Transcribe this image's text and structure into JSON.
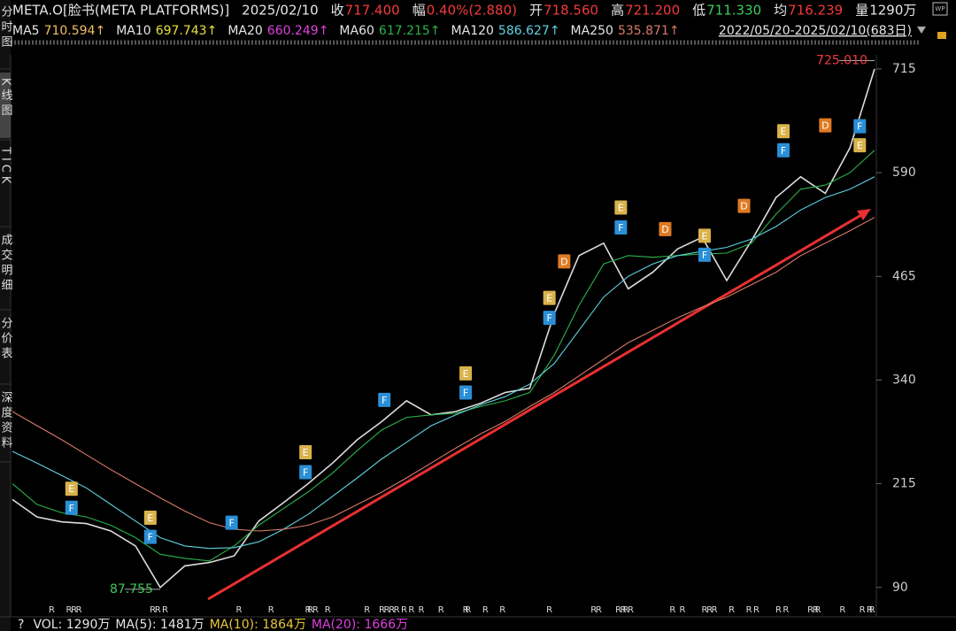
{
  "header": {
    "quote": [
      {
        "text": "META.O[脸书(META PLATFORMS)]",
        "color": "#e6e6e6"
      },
      {
        "text": "2025/02/10",
        "color": "#e6e6e6"
      },
      {
        "text": "收",
        "color": "#e6e6e6"
      },
      {
        "text": "717.400",
        "color": "#f23a3a"
      },
      {
        "text": "幅",
        "color": "#e6e6e6"
      },
      {
        "text": "0.40%(2.880)",
        "color": "#f23a3a"
      },
      {
        "text": "开",
        "color": "#e6e6e6"
      },
      {
        "text": "718.560",
        "color": "#f23a3a"
      },
      {
        "text": "高",
        "color": "#e6e6e6"
      },
      {
        "text": "721.200",
        "color": "#f23a3a"
      },
      {
        "text": "低",
        "color": "#e6e6e6"
      },
      {
        "text": "711.330",
        "color": "#3ec95b"
      },
      {
        "text": "均",
        "color": "#e6e6e6"
      },
      {
        "text": "716.239",
        "color": "#f23a3a"
      },
      {
        "text": "量",
        "color": "#e6e6e6"
      },
      {
        "text": "1290万",
        "color": "#e6e6e6"
      }
    ],
    "ma": [
      {
        "label": "MA5",
        "value": "710.594↑",
        "color": "#f0c060"
      },
      {
        "label": "MA10",
        "value": "697.743↑",
        "color": "#e8e03a"
      },
      {
        "label": "MA20",
        "value": "660.249↑",
        "color": "#e040e0"
      },
      {
        "label": "MA60",
        "value": "617.215↑",
        "color": "#2bb24c"
      },
      {
        "label": "MA120",
        "value": "586.627↑",
        "color": "#5fd3e0"
      },
      {
        "label": "MA250",
        "value": "535.871↑",
        "color": "#d87a6a"
      }
    ],
    "range": "2022/05/20-2025/02/10(683日)"
  },
  "tabs": [
    "分时图",
    "K线图",
    "TICK",
    "成交明细",
    "分价表",
    "深度资料"
  ],
  "footer": [
    {
      "text": "?",
      "color": "#e6e6e6"
    },
    {
      "text": "VOL: 1290万",
      "color": "#e6e6e6"
    },
    {
      "text": "MA(5): 1481万",
      "color": "#e6e6e6"
    },
    {
      "text": "MA(10): 1864万",
      "color": "#e8c83a"
    },
    {
      "text": "MA(20): 1666万",
      "color": "#e040e0"
    }
  ],
  "chart_data": {
    "type": "line",
    "categories": [
      null,
      null,
      null,
      null,
      null,
      null,
      null,
      null,
      null,
      null,
      null,
      null,
      null,
      null,
      null,
      null,
      null,
      null,
      null,
      null,
      null,
      null,
      null,
      null,
      null,
      null,
      null,
      null,
      null,
      null,
      null,
      null,
      null,
      null,
      null,
      null
    ],
    "series": [
      {
        "color": "#dcdcdc",
        "values": [
          196,
          175,
          169,
          167,
          158,
          140,
          90,
          116,
          120,
          128,
          170,
          192,
          215,
          240,
          268,
          290,
          315,
          298,
          302,
          312,
          325,
          330,
          420,
          490,
          505,
          450,
          470,
          498,
          512,
          460,
          508,
          560,
          585,
          565,
          620,
          715
        ]
      },
      {
        "name": "MA60",
        "color": "#2bb24c",
        "values": [
          215,
          190,
          180,
          175,
          165,
          150,
          130,
          125,
          122,
          140,
          165,
          185,
          205,
          228,
          255,
          280,
          295,
          298,
          300,
          308,
          315,
          325,
          370,
          430,
          480,
          490,
          488,
          490,
          492,
          493,
          505,
          540,
          570,
          575,
          590,
          617
        ]
      },
      {
        "name": "MA120",
        "color": "#5fd3e0",
        "values": [
          254,
          240,
          225,
          210,
          190,
          170,
          150,
          140,
          137,
          138,
          145,
          160,
          178,
          200,
          222,
          245,
          265,
          285,
          298,
          310,
          320,
          335,
          360,
          400,
          440,
          465,
          480,
          490,
          495,
          500,
          510,
          525,
          545,
          560,
          570,
          585
        ]
      },
      {
        "name": "MA250",
        "color": "#d87a6a",
        "values": [
          302,
          285,
          268,
          250,
          232,
          215,
          198,
          182,
          168,
          160,
          158,
          160,
          165,
          175,
          190,
          205,
          222,
          240,
          258,
          275,
          290,
          308,
          325,
          345,
          365,
          385,
          400,
          415,
          428,
          440,
          455,
          470,
          490,
          505,
          520,
          536
        ]
      }
    ],
    "ylim": [
      62,
      732
    ],
    "yticks": [
      90,
      215,
      340,
      465,
      590,
      715
    ],
    "high": {
      "text": "725.010",
      "value": 725.01,
      "x": 35,
      "color": "#f23a3a"
    },
    "low": {
      "text": "87.755",
      "value": 87.755,
      "x": 6,
      "color": "#3ec95b"
    },
    "event_colors": {
      "E": "#d9b24a",
      "F": "#2a8fd6",
      "D": "#e07a22"
    },
    "events": [
      {
        "label": "E",
        "x": 2.4,
        "y": 209
      },
      {
        "label": "F",
        "x": 2.4,
        "y": 186
      },
      {
        "label": "E",
        "x": 5.6,
        "y": 174
      },
      {
        "label": "F",
        "x": 5.6,
        "y": 151
      },
      {
        "label": "F",
        "x": 8.9,
        "y": 168
      },
      {
        "label": "E",
        "x": 11.9,
        "y": 253
      },
      {
        "label": "F",
        "x": 11.9,
        "y": 229
      },
      {
        "label": "F",
        "x": 15.1,
        "y": 316
      },
      {
        "label": "E",
        "x": 18.4,
        "y": 348
      },
      {
        "label": "F",
        "x": 18.4,
        "y": 325
      },
      {
        "label": "D",
        "x": 22.4,
        "y": 483
      },
      {
        "label": "E",
        "x": 21.8,
        "y": 439
      },
      {
        "label": "F",
        "x": 21.8,
        "y": 415
      },
      {
        "label": "E",
        "x": 24.7,
        "y": 548
      },
      {
        "label": "F",
        "x": 24.7,
        "y": 524
      },
      {
        "label": "D",
        "x": 26.5,
        "y": 522
      },
      {
        "label": "E",
        "x": 28.1,
        "y": 514
      },
      {
        "label": "F",
        "x": 28.1,
        "y": 491
      },
      {
        "label": "D",
        "x": 29.7,
        "y": 550
      },
      {
        "label": "E",
        "x": 31.3,
        "y": 640
      },
      {
        "label": "F",
        "x": 31.3,
        "y": 617
      },
      {
        "label": "D",
        "x": 33.0,
        "y": 647
      },
      {
        "label": "F",
        "x": 34.4,
        "y": 646
      },
      {
        "label": "E",
        "x": 34.4,
        "y": 623
      }
    ],
    "r_marks": {
      "label": "R",
      "x": [
        1.6,
        2.3,
        2.5,
        2.7,
        5.7,
        5.9,
        6.2,
        9.2,
        10.5,
        12.0,
        12.1,
        12.3,
        12.8,
        14.4,
        15.0,
        15.2,
        15.4,
        15.6,
        15.9,
        16.2,
        16.6,
        17.4,
        18.4,
        18.5,
        19.2,
        19.9,
        21.8,
        23.6,
        23.8,
        24.6,
        24.8,
        24.9,
        25.1,
        26.8,
        27.2,
        28.1,
        28.3,
        28.5,
        29.2,
        29.9,
        30.2,
        31.1,
        31.4,
        32.4,
        32.6,
        32.7,
        33.7,
        34.5,
        34.8,
        34.9
      ]
    }
  }
}
